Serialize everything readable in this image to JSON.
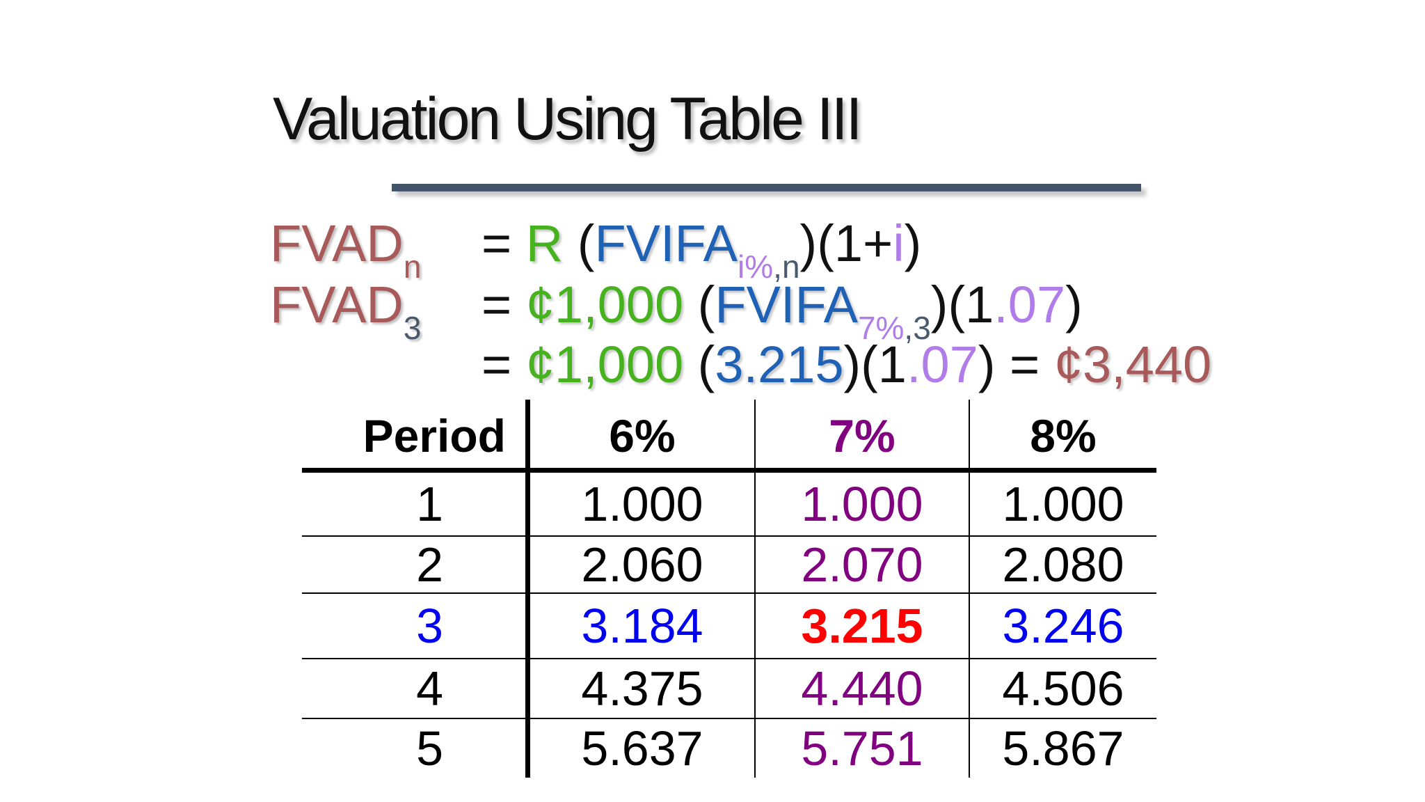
{
  "slide": {
    "title": "Valuation Using Table III",
    "colors": {
      "title_rule": "#44546a",
      "lhs": "#a85a5a",
      "amount_green": "#46b21e",
      "factor_blue": "#1f62b5",
      "rate_violet": "#b07de8",
      "table_purple": "#800080",
      "table_blue": "#0000ee",
      "highlight_red": "#ff0000"
    }
  },
  "formula": {
    "line1": {
      "lhs": "FVAD",
      "lhs_sub": "n",
      "equals": "=",
      "r": "R",
      "open": " (",
      "fvifa": "FVIFA",
      "sub_rate": "i%",
      "sub_comma": ",",
      "sub_n": "n",
      "mid": ")(1+",
      "rate": "i",
      "close": ")"
    },
    "line2": {
      "lhs": "FVAD",
      "lhs_sub": "3",
      "equals": "=",
      "amount": "¢1,000",
      "open": " (",
      "fvifa": "FVIFA",
      "sub_rate": "7%",
      "sub_comma": ",",
      "sub_n": "3",
      "mid": ")(1",
      "rate": ".07",
      "close": ")"
    },
    "line3": {
      "equals": "=",
      "amount": "¢1,000",
      "open": " (",
      "factor": "3.215",
      "mid": ")(1",
      "rate": ".07",
      "close": ") = ",
      "result": "¢3,440"
    }
  },
  "table": {
    "headers": [
      "Period",
      "6%",
      "7%",
      "8%"
    ],
    "rows": [
      [
        "1",
        "1.000",
        "1.000",
        "1.000"
      ],
      [
        "2",
        "2.060",
        "2.070",
        "2.080"
      ],
      [
        "3",
        "3.184",
        "3.215",
        "3.246"
      ],
      [
        "4",
        "4.375",
        "4.440",
        "4.506"
      ],
      [
        "5",
        "5.637",
        "5.751",
        "5.867"
      ]
    ]
  }
}
